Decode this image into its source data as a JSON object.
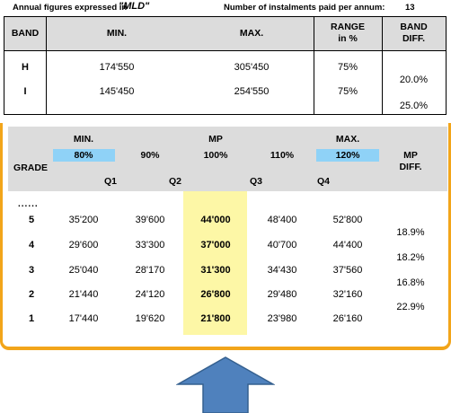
{
  "header": {
    "annual_label": "Annual figures expressed in",
    "currency": "\"MLD\"",
    "instalments_label": "Number of instalments paid per annum:",
    "instalments_value": "13"
  },
  "band_table": {
    "columns": {
      "band": "BAND",
      "min": "MIN.",
      "max": "MAX.",
      "range_line1": "RANGE",
      "range_line2": "in %",
      "diff_line1": "BAND",
      "diff_line2": "DIFF."
    },
    "rows": [
      {
        "band": "H",
        "min": "174'550",
        "max": "305'450",
        "range": "75%"
      },
      {
        "band": "I",
        "min": "145'450",
        "max": "254'550",
        "range": "75%"
      }
    ],
    "diffs": [
      "20.0%",
      "25.0%"
    ]
  },
  "grade_table": {
    "top_labels": {
      "min": "MIN.",
      "mp": "MP",
      "max": "MAX."
    },
    "percents": [
      "80%",
      "90%",
      "100%",
      "110%",
      "120%"
    ],
    "quartiles": [
      "Q1",
      "Q2",
      "Q3",
      "Q4"
    ],
    "grade_label": "GRADE",
    "mp_diff_line1": "MP",
    "mp_diff_line2": "DIFF.",
    "dots": "......",
    "rows": [
      {
        "grade": "5",
        "values": [
          "35'200",
          "39'600",
          "44'000",
          "48'400",
          "52'800"
        ]
      },
      {
        "grade": "4",
        "values": [
          "29'600",
          "33'300",
          "37'000",
          "40'700",
          "44'400"
        ]
      },
      {
        "grade": "3",
        "values": [
          "25'040",
          "28'170",
          "31'300",
          "34'430",
          "37'560"
        ]
      },
      {
        "grade": "2",
        "values": [
          "21'440",
          "24'120",
          "26'800",
          "29'480",
          "32'160"
        ]
      },
      {
        "grade": "1",
        "values": [
          "17'440",
          "19'620",
          "21'800",
          "23'980",
          "26'160"
        ]
      }
    ],
    "diffs": [
      "18.9%",
      "18.2%",
      "16.8%",
      "22.9%"
    ]
  },
  "colors": {
    "header_gray": "#dcdcdc",
    "highlight_blue": "#8fd2f7",
    "highlight_yellow": "#fdf7a6",
    "panel_border": "#f2a51a",
    "arrow_fill": "#4f81bd"
  },
  "arrow_icon": "up-arrow-icon"
}
